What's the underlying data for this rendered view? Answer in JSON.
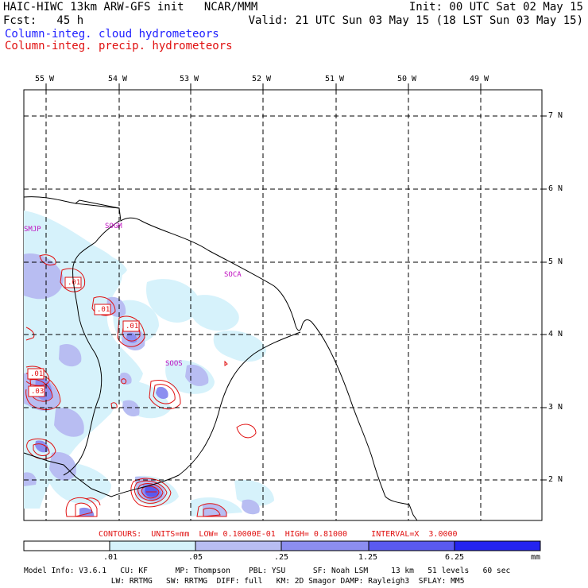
{
  "header": {
    "line1_left": "HAIC-HIWC 13km ARW-GFS init   NCAR/MMM",
    "line1_right": "Init: 00 UTC Sat 02 May 15",
    "line2_left": "Fcst:   45 h",
    "line2_right": "Valid: 21 UTC Sun 03 May 15 (18 LST Sun 03 May 15)",
    "legend_cloud": "Column-integ. cloud hydrometeors",
    "legend_precip": "Column-integ. precip. hydrometeors",
    "colors": {
      "cloud": "#2020ff",
      "precip": "#e01010"
    }
  },
  "map": {
    "lon_labels": [
      "55 W",
      "54 W",
      "53 W",
      "52 W",
      "51 W",
      "50 W",
      "49 W"
    ],
    "lat_labels": [
      "7 N",
      "6 N",
      "5 N",
      "4 N",
      "3 N",
      "2 N"
    ],
    "stations": [
      "SMJP",
      "SOGM",
      "SOCA",
      "SOOS"
    ],
    "contour_labels": [
      ".01",
      ".01",
      ".01",
      ".01",
      ".03"
    ]
  },
  "contour_info": "CONTOURS:  UNITS=mm  LOW= 0.10000E-01  HIGH= 0.81000     INTERVAL=X  3.0000",
  "colorbar": {
    "labels": [
      ".01",
      ".05",
      ".25",
      "1.25",
      "6.25"
    ],
    "unit": "mm",
    "colors": [
      "#ffffff",
      "#d6f2fb",
      "#b8bdf2",
      "#8c8ef0",
      "#5a5af0",
      "#2424f0"
    ]
  },
  "model_info": {
    "line1": "Model Info: V3.6.1   CU: KF      MP: Thompson    PBL: YSU      SF: Noah LSM     13 km   51 levels   60 sec",
    "line2": "                   LW: RRTMG   SW: RRTMG  DIFF: full   KM: 2D Smagor DAMP: Rayleigh3  SFLAY: MM5"
  }
}
